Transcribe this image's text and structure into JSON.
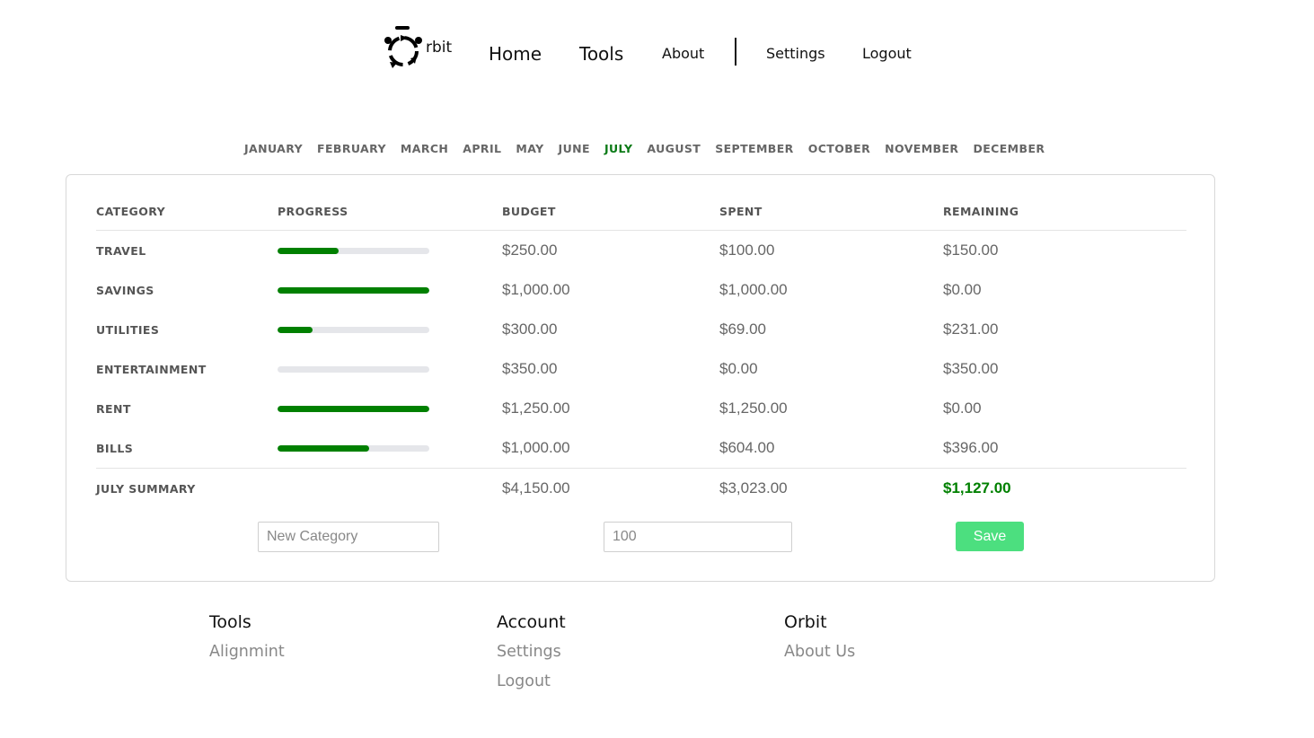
{
  "nav": {
    "logo_text": "rbit",
    "home": "Home",
    "tools": "Tools",
    "about": "About",
    "settings": "Settings",
    "logout": "Logout"
  },
  "months": [
    "JANUARY",
    "FEBRUARY",
    "MARCH",
    "APRIL",
    "MAY",
    "JUNE",
    "JULY",
    "AUGUST",
    "SEPTEMBER",
    "OCTOBER",
    "NOVEMBER",
    "DECEMBER"
  ],
  "active_month": "JULY",
  "table": {
    "headers": [
      "CATEGORY",
      "PROGRESS",
      "BUDGET",
      "SPENT",
      "REMAINING"
    ],
    "rows": [
      {
        "category": "TRAVEL",
        "progress": 40,
        "budget": "$250.00",
        "spent": "$100.00",
        "remaining": "$150.00"
      },
      {
        "category": "SAVINGS",
        "progress": 100,
        "budget": "$1,000.00",
        "spent": "$1,000.00",
        "remaining": "$0.00"
      },
      {
        "category": "UTILITIES",
        "progress": 23,
        "budget": "$300.00",
        "spent": "$69.00",
        "remaining": "$231.00"
      },
      {
        "category": "ENTERTAINMENT",
        "progress": 0,
        "budget": "$350.00",
        "spent": "$0.00",
        "remaining": "$350.00"
      },
      {
        "category": "RENT",
        "progress": 100,
        "budget": "$1,250.00",
        "spent": "$1,250.00",
        "remaining": "$0.00"
      },
      {
        "category": "BILLS",
        "progress": 60.4,
        "budget": "$1,000.00",
        "spent": "$604.00",
        "remaining": "$396.00"
      }
    ],
    "summary": {
      "label": "JULY SUMMARY",
      "budget": "$4,150.00",
      "spent": "$3,023.00",
      "remaining": "$1,127.00"
    }
  },
  "form": {
    "category_placeholder": "New Category",
    "amount_placeholder": "100",
    "save": "Save"
  },
  "colors": {
    "accent": "#008000",
    "save_button": "#4cdf7f",
    "active_month": "#0a7a16"
  },
  "footer": [
    {
      "title": "Tools",
      "links": [
        "Alignmint"
      ]
    },
    {
      "title": "Account",
      "links": [
        "Settings",
        "Logout"
      ]
    },
    {
      "title": "Orbit",
      "links": [
        "About Us"
      ]
    }
  ]
}
